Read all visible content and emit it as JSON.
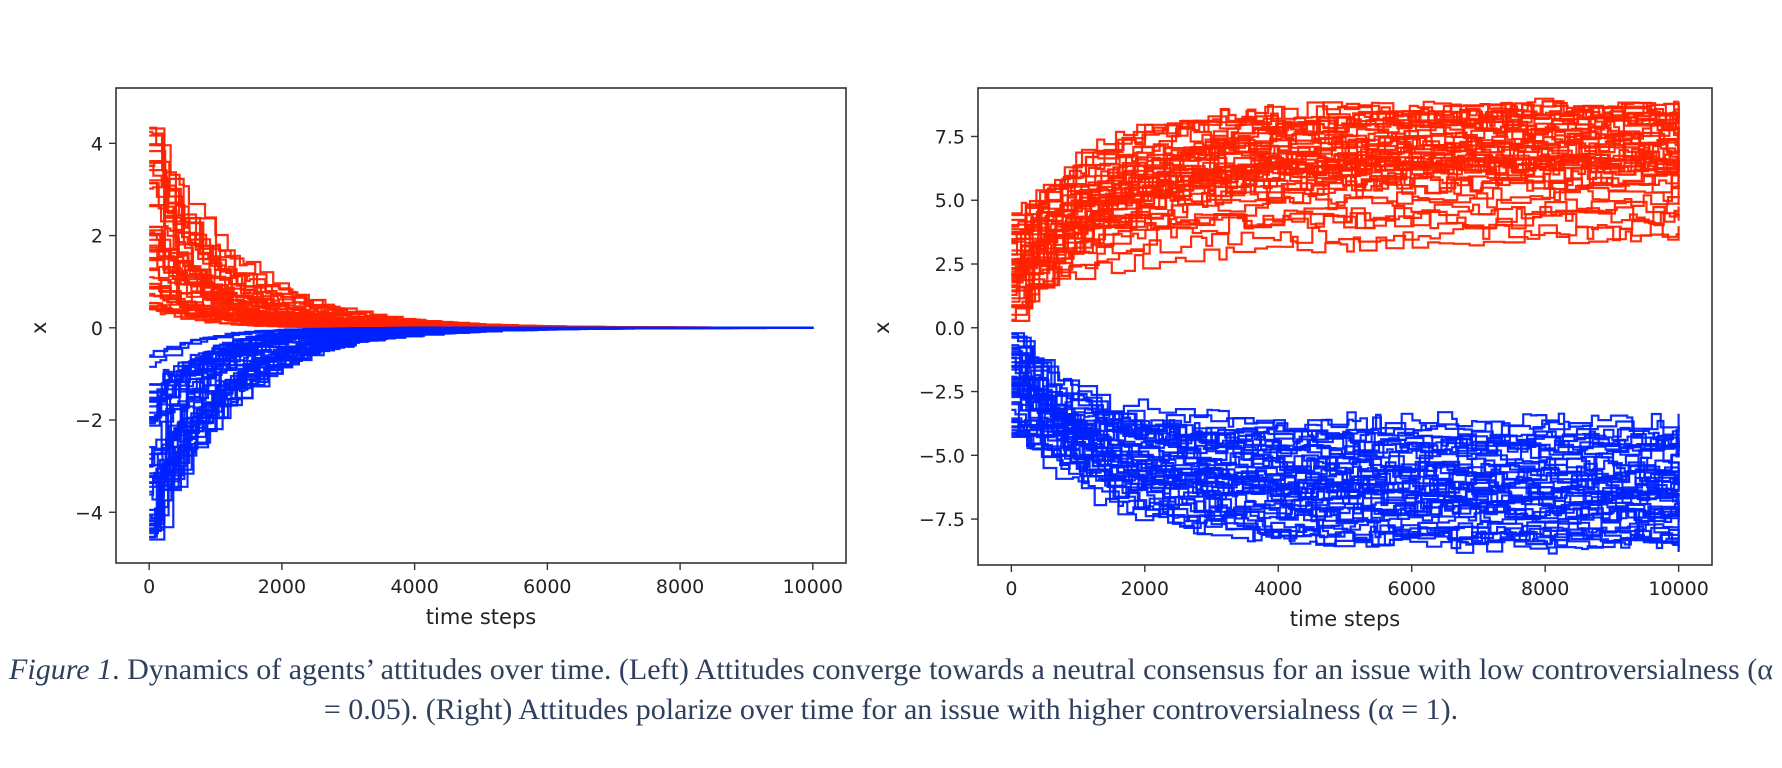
{
  "colors": {
    "positive": "#ff2200",
    "negative": "#0022ff",
    "axis": "#333333",
    "caption": "#2f3f5c"
  },
  "chart_data": [
    {
      "type": "line",
      "panel": "left",
      "title": "",
      "xlabel": "time steps",
      "ylabel": "x",
      "xlim": [
        -500,
        10500
      ],
      "ylim": [
        -5.1,
        5.2
      ],
      "xticks": [
        0,
        2000,
        4000,
        6000,
        8000,
        10000
      ],
      "xtick_labels": [
        "0",
        "2000",
        "4000",
        "6000",
        "8000",
        "10000"
      ],
      "yticks": [
        -4,
        -2,
        0,
        2,
        4
      ],
      "ytick_labels": [
        "−4",
        "−2",
        "0",
        "2",
        "4"
      ],
      "grid": false,
      "legend": "none",
      "series": [
        {
          "color": "positive",
          "trajectory": "converge",
          "count": 50,
          "start_range": [
            0.4,
            4.8
          ],
          "decay_timescale": 900,
          "end_value": 0
        },
        {
          "color": "negative",
          "trajectory": "converge",
          "count": 50,
          "start_range": [
            -4.6,
            -0.4
          ],
          "decay_timescale": 900,
          "end_value": 0
        }
      ]
    },
    {
      "type": "line",
      "panel": "right",
      "title": "",
      "xlabel": "time steps",
      "ylabel": "x",
      "xlim": [
        -500,
        10500
      ],
      "ylim": [
        -9.3,
        9.4
      ],
      "xticks": [
        0,
        2000,
        4000,
        6000,
        8000,
        10000
      ],
      "xtick_labels": [
        "0",
        "2000",
        "4000",
        "6000",
        "8000",
        "10000"
      ],
      "yticks": [
        -7.5,
        -5.0,
        -2.5,
        0.0,
        2.5,
        5.0,
        7.5
      ],
      "ytick_labels": [
        "−7.5",
        "−5.0",
        "−2.5",
        "0.0",
        "2.5",
        "5.0",
        "7.5"
      ],
      "grid": false,
      "legend": "none",
      "series": [
        {
          "color": "positive",
          "trajectory": "polarize",
          "count": 50,
          "start_range": [
            0.2,
            4.5
          ],
          "end_range": [
            3.4,
            8.8
          ],
          "rise_timescale": 1500
        },
        {
          "color": "negative",
          "trajectory": "polarize",
          "count": 50,
          "start_range": [
            -4.3,
            -0.2
          ],
          "end_range": [
            -8.6,
            -3.4
          ],
          "rise_timescale": 1500
        }
      ]
    }
  ],
  "caption": {
    "label": "Figure 1",
    "text": ". Dynamics of agents’ attitudes over time. (Left) Attitudes converge towards a neutral consensus for an issue with low controversialness (α = 0.05). (Right) Attitudes polarize over time for an issue with higher controversialness (α = 1)."
  }
}
